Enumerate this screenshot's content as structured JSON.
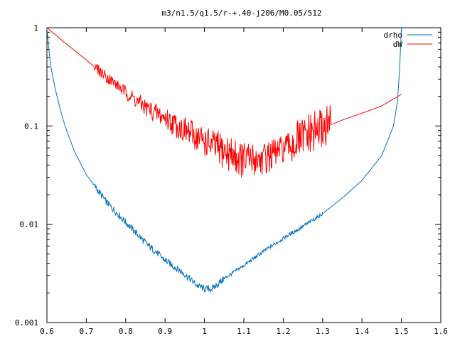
{
  "chart_data": {
    "type": "line",
    "title": "m3/n1.5/q1.5/r-+.40-j206/M0.05/512",
    "xlabel": "",
    "ylabel": "",
    "xlim": [
      0.6,
      1.6
    ],
    "ylim": [
      0.001,
      1
    ],
    "yscale": "log",
    "grid": false,
    "legend_position": "top-right",
    "x_ticks": [
      0.6,
      0.7,
      0.8,
      0.9,
      1.0,
      1.1,
      1.2,
      1.3,
      1.4,
      1.5,
      1.6
    ],
    "x_tick_labels": [
      "0.6",
      "0.7",
      "0.8",
      "0.9",
      "1",
      "1.1",
      "1.2",
      "1.3",
      "1.4",
      "1.5",
      "1.6"
    ],
    "y_ticks": [
      0.001,
      0.01,
      0.1,
      1
    ],
    "y_tick_labels": [
      "0.001",
      "0.01",
      "0.1",
      "1"
    ],
    "series": [
      {
        "name": "drho",
        "color": "#0072bd",
        "x": [
          0.6,
          0.605,
          0.61,
          0.62,
          0.63,
          0.64,
          0.65,
          0.67,
          0.7,
          0.75,
          0.8,
          0.85,
          0.9,
          0.95,
          0.98,
          1.0,
          1.02,
          1.05,
          1.1,
          1.15,
          1.2,
          1.25,
          1.3,
          1.35,
          1.4,
          1.45,
          1.48,
          1.49,
          1.495,
          1.5
        ],
        "y": [
          1.0,
          0.6,
          0.4,
          0.25,
          0.17,
          0.12,
          0.09,
          0.055,
          0.032,
          0.017,
          0.0105,
          0.0065,
          0.0043,
          0.0031,
          0.0024,
          0.0022,
          0.0022,
          0.0028,
          0.0038,
          0.0053,
          0.0072,
          0.0095,
          0.0128,
          0.0185,
          0.028,
          0.05,
          0.1,
          0.18,
          0.35,
          1.0
        ]
      },
      {
        "name": "dW",
        "color": "#ff0000",
        "x": [
          0.6,
          0.65,
          0.7,
          0.75,
          0.8,
          0.85,
          0.9,
          0.95,
          1.0,
          1.05,
          1.1,
          1.15,
          1.2,
          1.25,
          1.3,
          1.35,
          1.4,
          1.45,
          1.5
        ],
        "y": [
          1.0,
          0.68,
          0.47,
          0.32,
          0.22,
          0.155,
          0.12,
          0.09,
          0.07,
          0.055,
          0.045,
          0.046,
          0.058,
          0.075,
          0.095,
          0.115,
          0.135,
          0.16,
          0.21
        ]
      }
    ]
  }
}
